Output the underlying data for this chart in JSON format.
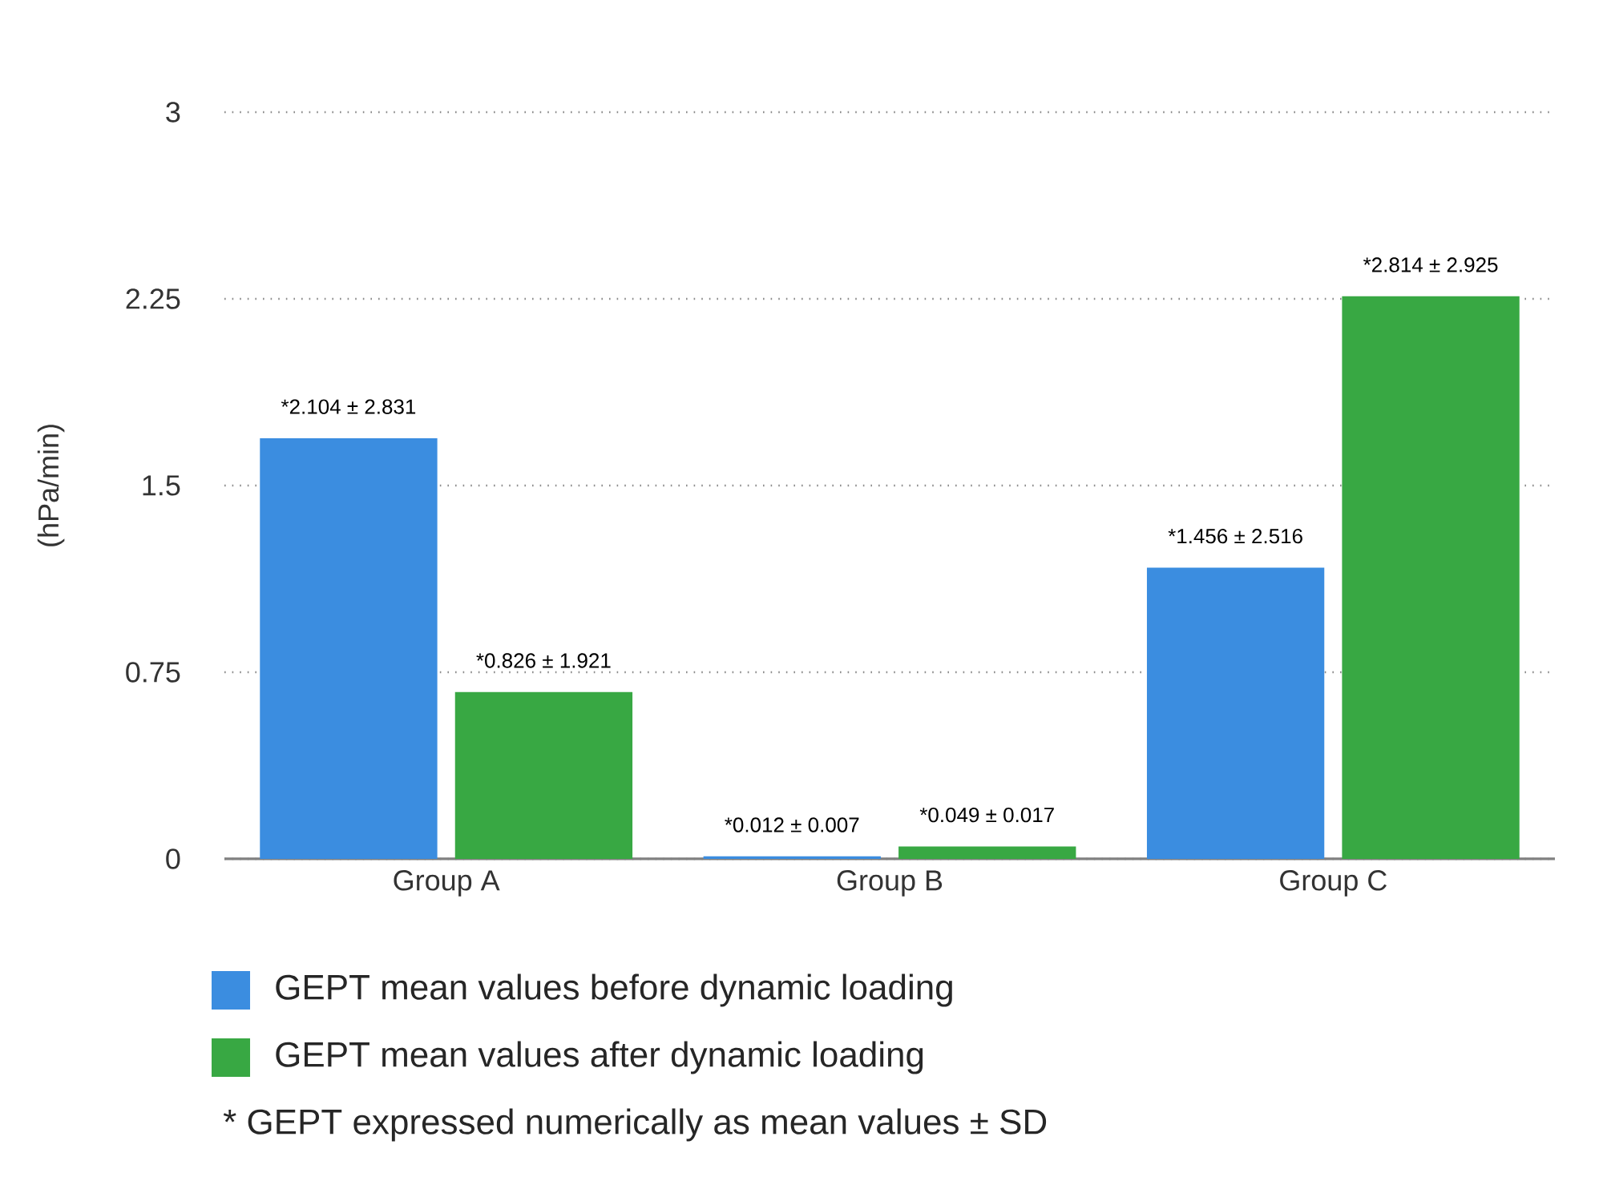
{
  "chart_data": {
    "type": "bar",
    "ylabel": "(hPa/min)",
    "categories": [
      "Group A",
      "Group B",
      "Group C"
    ],
    "series": [
      {
        "name": "GEPT mean values before dynamic loading",
        "color": "#3b8de0",
        "values": [
          1.69,
          0.01,
          1.17
        ],
        "value_labels": [
          "*2.104 ± 2.831",
          "*0.012 ± 0.007",
          "*1.456 ± 2.516"
        ]
      },
      {
        "name": "GEPT mean values after dynamic loading",
        "color": "#38a843",
        "values": [
          0.67,
          0.05,
          2.26
        ],
        "value_labels": [
          "*0.826 ± 1.921",
          "*0.049 ± 0.017",
          "*2.814 ± 2.925"
        ]
      }
    ],
    "ylim": [
      0,
      3
    ],
    "yticks": [
      0,
      0.75,
      1.5,
      2.25,
      3
    ],
    "grid": "y",
    "legend": "bottom",
    "annotations": [
      "*   GEPT expressed numerically as mean values ± SD"
    ]
  }
}
